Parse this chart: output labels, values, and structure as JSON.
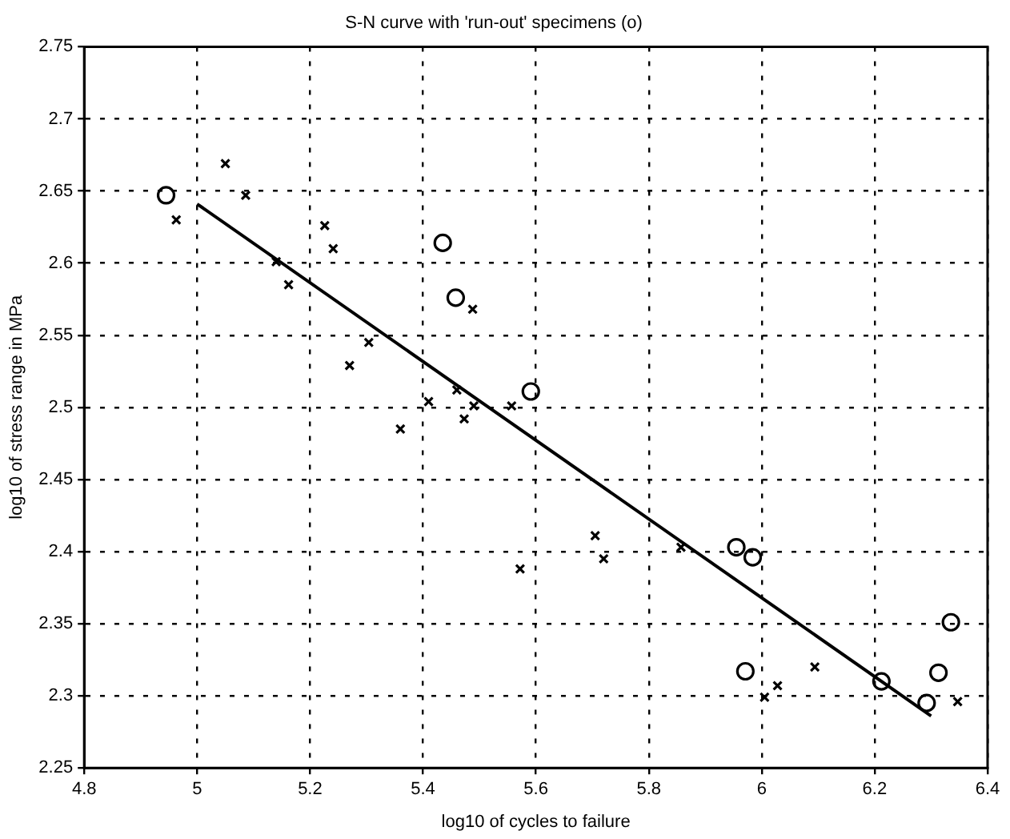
{
  "chart_data": {
    "type": "scatter",
    "title": "S-N curve with 'run-out' specimens (o)",
    "xlabel": "log10 of cycles to failure",
    "ylabel": "log10 of stress range in MPa",
    "xlim": [
      4.8,
      6.4
    ],
    "xticks": [
      4.8,
      5,
      5.2,
      5.4,
      5.6,
      5.8,
      6,
      6.2,
      6.4
    ],
    "ylim": [
      2.25,
      2.75
    ],
    "yticks": [
      2.25,
      2.3,
      2.35,
      2.4,
      2.45,
      2.5,
      2.55,
      2.6,
      2.65,
      2.7,
      2.75
    ],
    "grid": true,
    "legend": false,
    "series": [
      {
        "type": "scatter",
        "marker": "cross",
        "color": "#000000",
        "x": [
          5.05,
          5.086,
          4.963,
          5.226,
          5.241,
          5.14,
          5.162,
          5.304,
          5.27,
          5.41,
          5.46,
          5.473,
          5.49,
          5.557,
          5.36,
          5.488,
          5.572,
          5.705,
          5.72,
          5.857,
          6.094,
          6.028,
          6.005,
          6.347
        ],
        "values": [
          2.669,
          2.647,
          2.63,
          2.626,
          2.61,
          2.601,
          2.585,
          2.545,
          2.529,
          2.504,
          2.512,
          2.492,
          2.501,
          2.501,
          2.485,
          2.568,
          2.388,
          2.411,
          2.395,
          2.403,
          2.32,
          2.307,
          2.299,
          2.296
        ]
      },
      {
        "type": "scatter",
        "marker": "circle",
        "color": "#000000",
        "x": [
          4.945,
          5.435,
          5.458,
          5.591,
          5.955,
          5.984,
          5.971,
          6.212,
          6.292,
          6.313,
          6.335
        ],
        "values": [
          2.647,
          2.614,
          2.576,
          2.511,
          2.403,
          2.396,
          2.317,
          2.31,
          2.295,
          2.316,
          2.351
        ]
      },
      {
        "type": "line",
        "marker": "none",
        "line_style": "solid",
        "color": "#000000",
        "x": [
          5.0,
          6.3
        ],
        "values": [
          2.641,
          2.286
        ]
      }
    ]
  }
}
